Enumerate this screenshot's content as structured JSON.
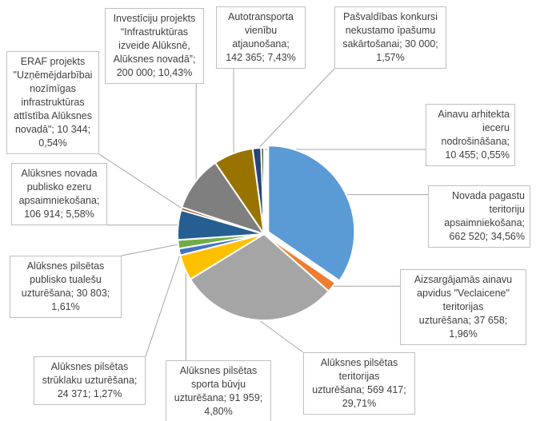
{
  "chart_data": {
    "type": "pie",
    "title": "",
    "slices": [
      {
        "label": "Novada pagastu teritoriju apsaimniekošana",
        "value": 662520,
        "percent": "34,56%",
        "value_text": "662 520",
        "color": "#5B9BD5"
      },
      {
        "label": "Aizsargājamās ainavu apvidus \"Veclaicene\" teritorijas uzturēšana",
        "value": 37658,
        "percent": "1,96%",
        "value_text": "37 658",
        "color": "#ED7D31"
      },
      {
        "label": "Alūksnes pilsētas teritorijas uzturēšana",
        "value": 569417,
        "percent": "29,71%",
        "value_text": "569 417",
        "color": "#A5A5A5"
      },
      {
        "label": "Alūksnes pilsētas sporta būvju uzturēšana",
        "value": 91959,
        "percent": "4,80%",
        "value_text": "91 959",
        "color": "#FFC000"
      },
      {
        "label": "Alūksnes pilsētas strūklaku uzturēšana",
        "value": 24371,
        "percent": "1,27%",
        "value_text": "24 371",
        "color": "#4472C4"
      },
      {
        "label": "Alūksnes pilsētas publisko tualešu uzturēšana",
        "value": 30803,
        "percent": "1,61%",
        "value_text": "30 803",
        "color": "#70AD47"
      },
      {
        "label": "Alūksnes novada publisko ezeru apsaimniekošana",
        "value": 106914,
        "percent": "5,58%",
        "value_text": "106 914",
        "color": "#255E91"
      },
      {
        "label": "ERAF projekts \"Uzņēmējdarbībai nozīmīgas infrastruktūras attīstība Alūksnes novadā\"",
        "value": 10344,
        "percent": "0,54%",
        "value_text": "10 344",
        "color": "#9E480E"
      },
      {
        "label": "Investīciju projekts \"Infrastruktūras izveide Alūksnē, Alūksnes novadā\"",
        "value": 200000,
        "percent": "10,43%",
        "value_text": "200 000",
        "color": "#7F7F7F"
      },
      {
        "label": "Autotransporta vienību atjaunošana",
        "value": 142365,
        "percent": "7,43%",
        "value_text": "142 365",
        "color": "#997300"
      },
      {
        "label": "Pašvaldības konkursi nekustamo īpašumu sakārtošanai",
        "value": 30000,
        "percent": "1,57%",
        "value_text": "30 000",
        "color": "#264478"
      },
      {
        "label": "Ainavu arhitekta ieceru nodrošināšana",
        "value": 10455,
        "percent": "0,55%",
        "value_text": "10 455",
        "color": "#43682B"
      }
    ]
  },
  "callouts": [
    {
      "name_lines": [
        "Novada pagastu",
        "teritoriju",
        "apsaimniekošana;"
      ],
      "value_line": "662 520; 34,56%"
    },
    {
      "name_lines": [
        "Aizsargājamās ainavu",
        "apvidus \"Veclaicene\"",
        "teritorijas",
        "uzturēšana; 37 658;"
      ],
      "value_line": "1,96%"
    },
    {
      "name_lines": [
        "Alūksnes pilsētas",
        "teritorijas",
        "uzturēšana; 569 417;"
      ],
      "value_line": "29,71%"
    },
    {
      "name_lines": [
        "Alūksnes pilsētas",
        "sporta būvju",
        "uzturēšana; 91 959;"
      ],
      "value_line": "4,80%"
    },
    {
      "name_lines": [
        "Alūksnes pilsētas",
        "strūklaku uzturēšana;"
      ],
      "value_line": "24 371; 1,27%"
    },
    {
      "name_lines": [
        "Alūksnes pilsētas",
        "publisko tualešu",
        "uzturēšana; 30 803;"
      ],
      "value_line": "1,61%"
    },
    {
      "name_lines": [
        "Alūksnes novada",
        "publisko ezeru",
        "apsaimniekošana;"
      ],
      "value_line": "106 914; 5,58%"
    },
    {
      "name_lines": [
        "ERAF projekts",
        "\"Uzņēmējdarbībai",
        "nozīmīgas",
        "infrastruktūras",
        "attīstība Alūksnes",
        "novadā\"; 10 344;"
      ],
      "value_line": "0,54%"
    },
    {
      "name_lines": [
        "Investīciju projekts",
        "“Infrastruktūras",
        "izveide Alūksnē,",
        "Alūksnes novadā”;"
      ],
      "value_line": "200 000; 10,43%"
    },
    {
      "name_lines": [
        "Autotransporta",
        "vienību",
        "atjaunošana;"
      ],
      "value_line": "142 365; 7,43%"
    },
    {
      "name_lines": [
        "Pašvaldības konkursi",
        "nekustamo īpašumu",
        "sakārtošanai; 30 000;"
      ],
      "value_line": "1,57%"
    },
    {
      "name_lines": [
        "Ainavu arhitekta",
        "ieceru",
        "nodrošināšana;"
      ],
      "value_line": "10 455; 0,55%"
    }
  ]
}
